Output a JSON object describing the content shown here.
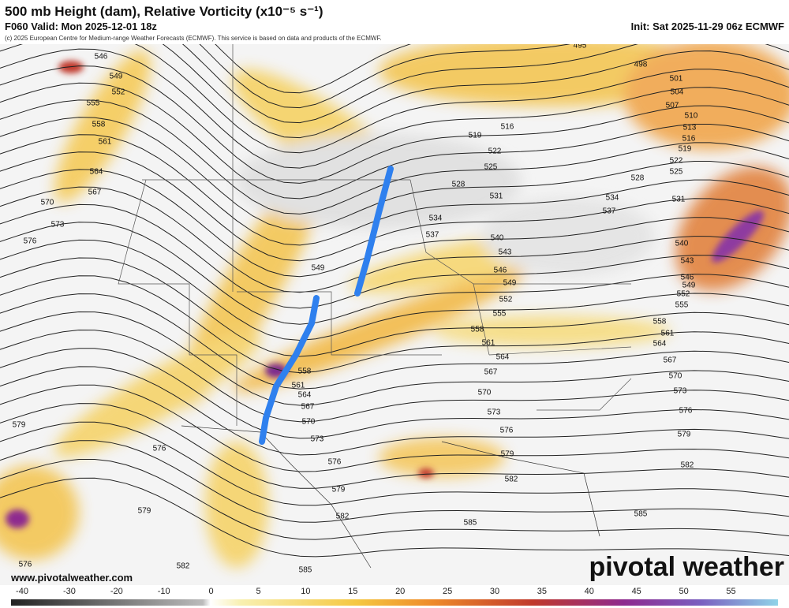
{
  "header": {
    "title": "500 mb Height (dam), Relative Vorticity (x10⁻⁵ s⁻¹)",
    "copyright": "(c) 2025 European Centre for Medium-range Weather Forecasts (ECMWF). This service is based on data and products of the ECMWF.",
    "valid": "F060 Valid: Mon 2025-12-01 18z",
    "init": "Init: Sat 2025-11-29 06z ECMWF"
  },
  "map": {
    "contour_labels": [
      "546",
      "549",
      "552",
      "555",
      "558",
      "561",
      "564",
      "567",
      "570",
      "573",
      "576",
      "495",
      "498",
      "501",
      "504",
      "507",
      "510",
      "513",
      "516",
      "519",
      "522",
      "525",
      "528",
      "531",
      "534",
      "537",
      "540",
      "543",
      "546",
      "549",
      "552",
      "555",
      "558",
      "561",
      "564",
      "567",
      "570",
      "573",
      "576",
      "579",
      "582",
      "585",
      "516",
      "519",
      "522",
      "525",
      "528",
      "531",
      "534",
      "537",
      "540",
      "543",
      "546",
      "549",
      "552",
      "555",
      "558",
      "561",
      "564",
      "567",
      "570",
      "573",
      "576",
      "579",
      "582",
      "585",
      "549",
      "558",
      "561",
      "564",
      "567",
      "570",
      "573",
      "576",
      "579",
      "582",
      "585",
      "582",
      "579",
      "576",
      "579",
      "576"
    ]
  },
  "footer": {
    "website": "www.pivotalweather.com",
    "logo": "pivotal weather"
  },
  "colorbar": {
    "ticks": [
      -40,
      -30,
      -20,
      -10,
      0,
      5,
      10,
      15,
      20,
      25,
      30,
      35,
      40,
      45,
      50,
      55
    ]
  }
}
